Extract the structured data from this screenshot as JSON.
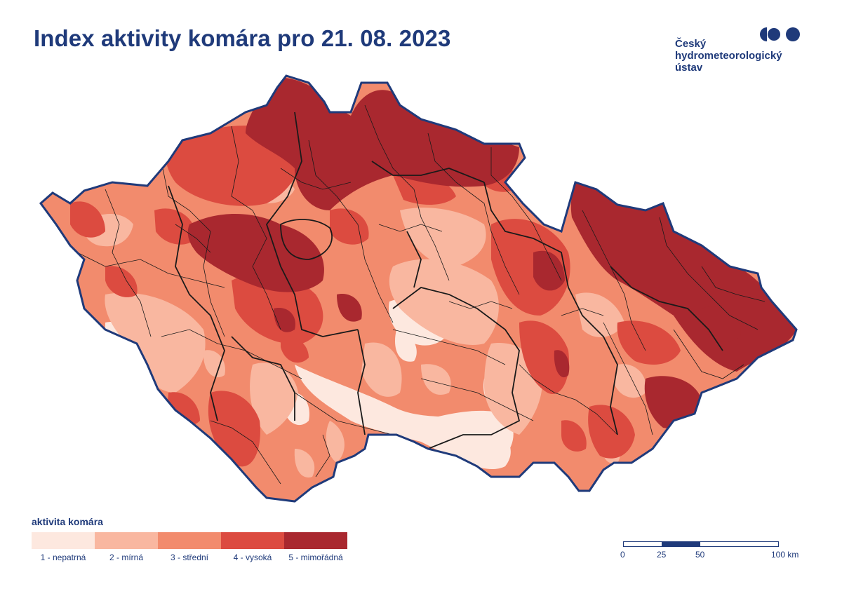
{
  "title": "Index aktivity komára pro 21. 08. 2023",
  "logo": {
    "line1": "Český",
    "line2": "hydrometeorologický",
    "line3": "ústav",
    "icon": "chmi-dots-logo",
    "color": "#1f3a7a"
  },
  "legend": {
    "title": "aktivita komára",
    "classes": [
      {
        "label": "1 - nepatrná",
        "color": "#fde8df"
      },
      {
        "label": "2 - mírná",
        "color": "#f9b7a0"
      },
      {
        "label": "3 - střední",
        "color": "#f28b6d"
      },
      {
        "label": "4 - vysoká",
        "color": "#dc4b40"
      },
      {
        "label": "5 - mimořádná",
        "color": "#a9282f"
      }
    ]
  },
  "scale_bar": {
    "ticks": [
      "0",
      "25",
      "50",
      "100 km"
    ]
  },
  "colors": {
    "border": "#1f3a7a",
    "district_lines": "#1a1a1a"
  }
}
